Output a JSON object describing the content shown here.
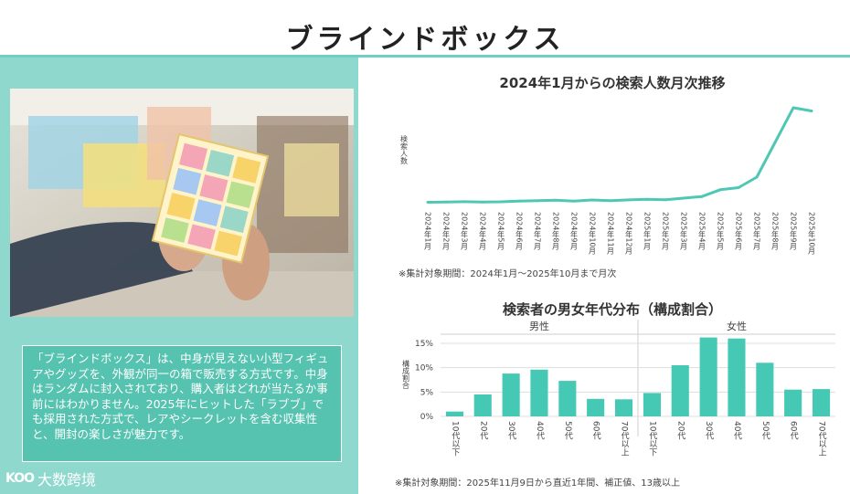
{
  "header": {
    "title": "ブラインドボックス"
  },
  "left": {
    "description": "「ブラインドボックス」は、中身が見えない小型フィギュアやグッズを、外観が同一の箱で販売する方式です。中身はランダムに封入されており、購入者はどれが当たるか事前にはわかりません。2025年にヒットした「ラブブ」でも採用された方式で、レアやシークレットを含む収集性と、開封の楽しさが魅力です。",
    "watermark": "大数跨境",
    "watermark_logo": "KOO"
  },
  "colors": {
    "accent": "#4fc7b4",
    "panel": "#8fd8cd",
    "box": "#56c2b0",
    "bar": "#45c9b5"
  },
  "chart_data": [
    {
      "type": "line",
      "title": "2024年1月からの検索人数月次推移",
      "ylabel": "検索人数",
      "note": "※集計対象期間：2024年1月～2025年10月まで月次",
      "x": [
        "2024年1月",
        "2024年2月",
        "2024年3月",
        "2024年4月",
        "2024年5月",
        "2024年6月",
        "2024年7月",
        "2024年8月",
        "2024年9月",
        "2024年10月",
        "2024年11月",
        "2024年12月",
        "2025年1月",
        "2025年2月",
        "2025年3月",
        "2025年4月",
        "2025年5月",
        "2025年6月",
        "2025年7月",
        "2025年8月",
        "2025年9月",
        "2025年10月"
      ],
      "values": [
        3,
        3.3,
        3.6,
        3.2,
        3.5,
        4.2,
        4.5,
        5,
        4.2,
        5.2,
        4.5,
        5.3,
        5.8,
        5.4,
        7,
        8.5,
        15,
        17,
        27,
        60,
        93,
        90
      ],
      "ylim": [
        0,
        100
      ],
      "grid": false
    },
    {
      "type": "bar",
      "title": "検索者の男女年代分布（構成割合）",
      "ylabel": "構成割合",
      "note": "※集計対象期間：2025年11月9日から直近1年間、補正値、13歳以上",
      "groups": [
        "男性",
        "女性"
      ],
      "categories": [
        "10代以下",
        "20代",
        "30代",
        "40代",
        "50代",
        "60代",
        "70代以上",
        "10代以下",
        "20代",
        "30代",
        "40代",
        "50代",
        "60代",
        "70代以上"
      ],
      "values": [
        1,
        4.5,
        8.8,
        9.6,
        7.3,
        3.6,
        3.5,
        4.8,
        10.5,
        16.2,
        16.0,
        11.0,
        5.5,
        5.6
      ],
      "yticks": [
        "0%",
        "5%",
        "10%",
        "15%"
      ],
      "ylim": [
        0,
        16.5
      ],
      "grid": true
    }
  ]
}
